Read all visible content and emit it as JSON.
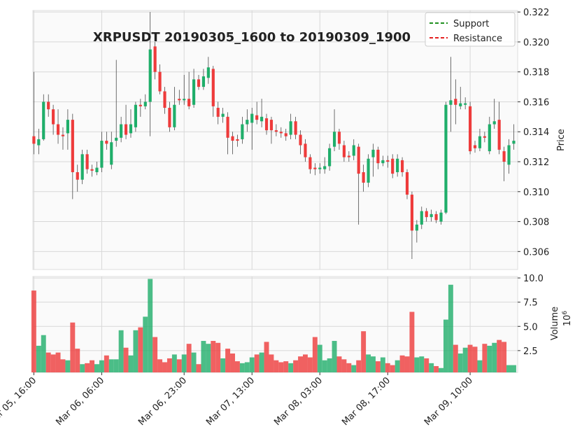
{
  "chart_data": {
    "type": "candlestick",
    "title": "XRPUSDT 20190305_1600 to 20190309_1900",
    "ylabel": "Price",
    "volume_label": "Volume",
    "volume_offset": {
      "base": "10",
      "exponent": "6"
    },
    "up_color": "#1fae6a",
    "down_color": "#ee3b3b",
    "grid": true,
    "legend_position": "upper right",
    "lines": [
      {
        "name": "Support",
        "color": "#008000",
        "style": "dashed"
      },
      {
        "name": "Resistance",
        "color": "#e00000",
        "style": "dashed"
      }
    ],
    "xlim": [
      -0.2,
      99.8
    ],
    "xticks": [
      {
        "value": 0,
        "label": "Mar 05, 16:00"
      },
      {
        "value": 14,
        "label": "Mar 06, 06:00"
      },
      {
        "value": 31,
        "label": "Mar 06, 23:00"
      },
      {
        "value": 45,
        "label": "Mar 07, 13:00"
      },
      {
        "value": 59,
        "label": "Mar 08, 03:00"
      },
      {
        "value": 73,
        "label": "Mar 08, 17:00"
      },
      {
        "value": 90,
        "label": "Mar 09, 10:00"
      }
    ],
    "ylim": [
      0.3048,
      0.3221
    ],
    "yticks": [
      0.306,
      0.308,
      {
        "value": 0.31,
        "label": "0.310"
      },
      0.312,
      0.314,
      0.316,
      0.318,
      {
        "value": 0.32,
        "label": "0.320"
      },
      0.322
    ],
    "vol_ylim": [
      0.25,
      10.15
    ],
    "vol_yticks": [
      2.5,
      {
        "value": 5,
        "label": "5.0"
      },
      {
        "value": 7.5,
        "label": "7.5"
      },
      {
        "value": 10,
        "label": "10.0"
      }
    ],
    "x": [
      0,
      1,
      2,
      3,
      4,
      5,
      6,
      7,
      8,
      9,
      10,
      11,
      12,
      13,
      14,
      15,
      16,
      17,
      18,
      19,
      20,
      21,
      22,
      23,
      24,
      25,
      26,
      27,
      28,
      29,
      30,
      31,
      32,
      33,
      34,
      35,
      36,
      37,
      38,
      39,
      40,
      41,
      42,
      43,
      44,
      45,
      46,
      47,
      48,
      49,
      50,
      51,
      52,
      53,
      54,
      55,
      56,
      57,
      58,
      59,
      60,
      61,
      62,
      63,
      64,
      65,
      66,
      67,
      68,
      69,
      70,
      71,
      72,
      73,
      74,
      75,
      76,
      77,
      78,
      79,
      80,
      81,
      82,
      83,
      84,
      85,
      86,
      87,
      88,
      89,
      90,
      91,
      92,
      93,
      94,
      95,
      96,
      97,
      98,
      99
    ],
    "open": [
      0.3137,
      0.3131,
      0.3135,
      0.316,
      0.3155,
      0.3145,
      0.3138,
      0.3139,
      0.3148,
      0.3113,
      0.3108,
      0.3125,
      0.3115,
      0.3113,
      0.3116,
      0.3134,
      0.3118,
      0.3134,
      0.3136,
      0.3145,
      0.3139,
      0.3143,
      0.3158,
      0.3157,
      0.316,
      0.3197,
      0.318,
      0.3167,
      0.3156,
      0.3143,
      0.3162,
      0.3161,
      0.3162,
      0.3158,
      0.3175,
      0.317,
      0.3176,
      0.3182,
      0.3156,
      0.315,
      0.315,
      0.3137,
      0.3135,
      0.3135,
      0.3145,
      0.3146,
      0.3151,
      0.3147,
      0.3149,
      0.3148,
      0.3141,
      0.314,
      0.3139,
      0.3138,
      0.3147,
      0.3138,
      0.3132,
      0.3123,
      0.3116,
      0.3115,
      0.3115,
      0.3117,
      0.313,
      0.314,
      0.3131,
      0.3124,
      0.3124,
      0.313,
      0.3113,
      0.3106,
      0.3123,
      0.3128,
      0.3119,
      0.3121,
      0.3122,
      0.3113,
      0.3121,
      0.3113,
      0.3098,
      0.3074,
      0.3078,
      0.3087,
      0.3083,
      0.3085,
      0.308,
      0.3086,
      0.3158,
      0.3162,
      0.3157,
      0.3158,
      0.3157,
      0.3131,
      0.3129,
      0.3137,
      0.3127,
      0.3145,
      0.3148,
      0.3127,
      0.3118,
      0.3132
    ],
    "high": [
      0.318,
      0.3142,
      0.3165,
      0.3165,
      0.3158,
      0.3155,
      0.3143,
      0.3155,
      0.3152,
      0.3118,
      0.3128,
      0.3128,
      0.3118,
      0.312,
      0.314,
      0.314,
      0.314,
      0.3188,
      0.315,
      0.3158,
      0.3155,
      0.316,
      0.3162,
      0.3165,
      0.322,
      0.32,
      0.3185,
      0.317,
      0.316,
      0.317,
      0.3168,
      0.3178,
      0.318,
      0.3182,
      0.3178,
      0.3182,
      0.319,
      0.3184,
      0.316,
      0.3156,
      0.3153,
      0.314,
      0.3138,
      0.315,
      0.3155,
      0.3156,
      0.316,
      0.3162,
      0.3152,
      0.315,
      0.3145,
      0.3143,
      0.3142,
      0.3152,
      0.315,
      0.3141,
      0.3135,
      0.3125,
      0.3119,
      0.3119,
      0.3123,
      0.3132,
      0.3155,
      0.3142,
      0.3134,
      0.3127,
      0.3135,
      0.3132,
      0.3118,
      0.3125,
      0.3132,
      0.313,
      0.3124,
      0.3124,
      0.3125,
      0.3125,
      0.3123,
      0.3115,
      0.31,
      0.3081,
      0.309,
      0.3089,
      0.3088,
      0.3087,
      0.3088,
      0.316,
      0.319,
      0.3175,
      0.317,
      0.3163,
      0.316,
      0.3134,
      0.3142,
      0.314,
      0.315,
      0.3162,
      0.316,
      0.313,
      0.3135,
      0.3145
    ],
    "low": [
      0.3125,
      0.3125,
      0.3134,
      0.315,
      0.3138,
      0.3132,
      0.3128,
      0.3128,
      0.3095,
      0.31,
      0.3105,
      0.3112,
      0.311,
      0.3111,
      0.3113,
      0.3128,
      0.3115,
      0.313,
      0.3133,
      0.3135,
      0.3136,
      0.314,
      0.315,
      0.3155,
      0.3137,
      0.3175,
      0.3165,
      0.3152,
      0.314,
      0.3141,
      0.3158,
      0.3158,
      0.3155,
      0.3156,
      0.3168,
      0.3168,
      0.3172,
      0.315,
      0.3145,
      0.3146,
      0.3125,
      0.3125,
      0.313,
      0.3132,
      0.314,
      0.3128,
      0.3145,
      0.3143,
      0.3138,
      0.3132,
      0.3137,
      0.3136,
      0.3134,
      0.3135,
      0.3135,
      0.3125,
      0.312,
      0.3112,
      0.3111,
      0.3112,
      0.3112,
      0.3114,
      0.3127,
      0.3128,
      0.312,
      0.312,
      0.3121,
      0.3078,
      0.31,
      0.3103,
      0.311,
      0.3115,
      0.3117,
      0.3116,
      0.3109,
      0.311,
      0.311,
      0.3095,
      0.3055,
      0.3066,
      0.3075,
      0.308,
      0.308,
      0.3079,
      0.3078,
      0.3085,
      0.314,
      0.3145,
      0.3155,
      0.3155,
      0.3125,
      0.3126,
      0.3127,
      0.3133,
      0.3125,
      0.3142,
      0.3125,
      0.3107,
      0.3112,
      0.3128
    ],
    "close": [
      0.3132,
      0.3135,
      0.316,
      0.3155,
      0.3145,
      0.3138,
      0.3137,
      0.3148,
      0.3113,
      0.3108,
      0.3125,
      0.3115,
      0.3114,
      0.3116,
      0.3134,
      0.3132,
      0.3133,
      0.3136,
      0.3145,
      0.3138,
      0.3145,
      0.3158,
      0.3157,
      0.316,
      0.3195,
      0.318,
      0.3167,
      0.3156,
      0.3143,
      0.3158,
      0.3161,
      0.3162,
      0.3157,
      0.3175,
      0.317,
      0.3177,
      0.3183,
      0.3157,
      0.315,
      0.3152,
      0.3136,
      0.3134,
      0.3134,
      0.3145,
      0.3148,
      0.3152,
      0.3148,
      0.315,
      0.3141,
      0.3141,
      0.314,
      0.3139,
      0.3137,
      0.3147,
      0.3138,
      0.3131,
      0.3123,
      0.3115,
      0.3115,
      0.3116,
      0.3117,
      0.3129,
      0.314,
      0.3132,
      0.3123,
      0.3123,
      0.3131,
      0.3112,
      0.3106,
      0.3122,
      0.3128,
      0.3119,
      0.3121,
      0.312,
      0.3112,
      0.3122,
      0.3113,
      0.3098,
      0.3074,
      0.3078,
      0.3087,
      0.3083,
      0.3085,
      0.3081,
      0.3086,
      0.3158,
      0.3161,
      0.3158,
      0.3159,
      0.3159,
      0.3127,
      0.3129,
      0.3137,
      0.3136,
      0.3145,
      0.3147,
      0.3128,
      0.312,
      0.3131,
      0.3134
    ],
    "volume": [
      8.7,
      3.0,
      4.1,
      2.3,
      2.1,
      2.3,
      1.6,
      1.5,
      5.4,
      2.7,
      1.1,
      1.2,
      1.5,
      1.1,
      1.5,
      2.0,
      1.6,
      1.6,
      4.6,
      2.8,
      2.0,
      4.6,
      4.9,
      6.0,
      9.9,
      3.9,
      1.6,
      1.3,
      1.7,
      2.1,
      1.6,
      2.1,
      3.2,
      2.3,
      1.1,
      3.5,
      3.2,
      3.5,
      3.3,
      1.7,
      2.7,
      2.2,
      1.4,
      1.2,
      1.3,
      1.8,
      2.1,
      2.3,
      3.4,
      2.1,
      1.5,
      1.3,
      1.4,
      1.2,
      1.5,
      1.9,
      2.1,
      1.8,
      3.9,
      3.1,
      1.5,
      1.7,
      3.5,
      1.9,
      1.6,
      1.2,
      1.0,
      1.5,
      4.5,
      2.1,
      1.9,
      1.4,
      1.8,
      1.2,
      1.0,
      1.5,
      2.0,
      1.9,
      6.5,
      1.8,
      1.9,
      1.7,
      1.2,
      0.9,
      0.7,
      5.7,
      9.3,
      3.1,
      2.2,
      2.8,
      3.1,
      2.9,
      1.5,
      3.2,
      3.0,
      3.3,
      3.6,
      3.4,
      1.0,
      1.0
    ]
  }
}
